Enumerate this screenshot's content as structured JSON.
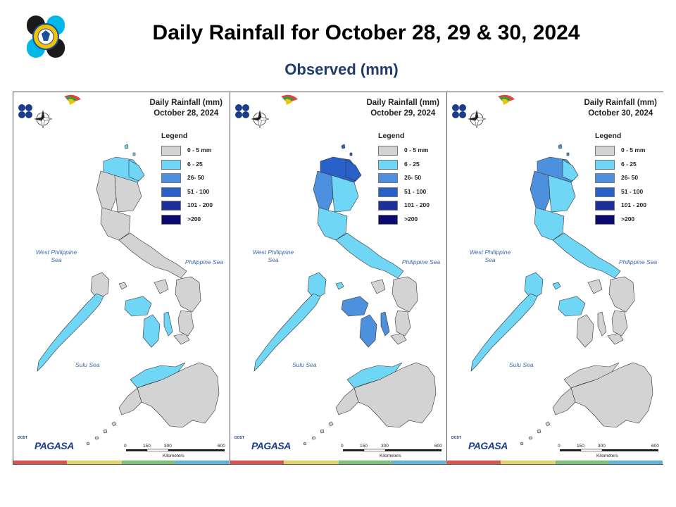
{
  "header": {
    "title": "Daily Rainfall for October 28, 29 & 30, 2024",
    "subtitle": "Observed (mm)"
  },
  "agency_logo": {
    "icon": "dost-seal-icon",
    "colors": [
      "#1a1a1a",
      "#00b7e8",
      "#f2c200"
    ]
  },
  "legend_title": "Legend",
  "legend": [
    {
      "label": "0 - 5 mm",
      "color": "#d3d3d3"
    },
    {
      "label": "6 - 25",
      "color": "#6fd6f5"
    },
    {
      "label": "26- 50",
      "color": "#4d90dd"
    },
    {
      "label": "51 - 100",
      "color": "#2a61c9"
    },
    {
      "label": "101 - 200",
      "color": "#1d2f9a"
    },
    {
      "label": ">200",
      "color": "#0a0a6e"
    }
  ],
  "seas": {
    "west": "West Philippine Sea",
    "east": "Philippine Sea",
    "sulu": "Sulu Sea"
  },
  "compass": {
    "n": "N",
    "s": "S",
    "e": "E",
    "w": "W"
  },
  "scale": {
    "ticks": [
      "0",
      "150",
      "300",
      "600"
    ],
    "unit": "Kilometers"
  },
  "branding": {
    "agency": "PAGASA",
    "department": "DOST"
  },
  "maps": [
    {
      "title_line1": "Daily Rainfall (mm)",
      "title_line2": "October 28, 2024",
      "regions": {
        "north_luzon": "6-25",
        "ilocos_west": "0-5",
        "cagayan_east": "6-25",
        "central_luzon": "0-5",
        "south_luzon": "0-5",
        "mindoro": "0-5",
        "palawan": "6-25",
        "panay": "6-25",
        "negros": "6-25",
        "samar": "0-5",
        "leyte": "0-5",
        "north_mindanao": "6-25",
        "mindanao": "0-5"
      }
    },
    {
      "title_line1": "Daily Rainfall (mm)",
      "title_line2": "October 29, 2024",
      "regions": {
        "north_luzon": "51-100",
        "ilocos_west": "26-50",
        "cagayan_east": "51-100",
        "central_luzon": "6-25",
        "south_luzon": "6-25",
        "mindoro": "6-25",
        "palawan": "6-25",
        "panay": "26-50",
        "negros": "26-50",
        "samar": "0-5",
        "leyte": "0-5",
        "north_mindanao": "6-25",
        "mindanao": "0-5"
      }
    },
    {
      "title_line1": "Daily Rainfall (mm)",
      "title_line2": "October 30, 2024",
      "regions": {
        "north_luzon": "26-50",
        "ilocos_west": "26-50",
        "cagayan_east": "6-25",
        "central_luzon": "6-25",
        "south_luzon": "6-25",
        "mindoro": "6-25",
        "palawan": "6-25",
        "panay": "6-25",
        "negros": "0-5",
        "samar": "0-5",
        "leyte": "0-5",
        "north_mindanao": "0-5",
        "mindanao": "0-5"
      }
    }
  ],
  "bottom_bar_colors": [
    "#d9534f",
    "#e2d46a",
    "#7cc07a",
    "#5fb3d9"
  ]
}
